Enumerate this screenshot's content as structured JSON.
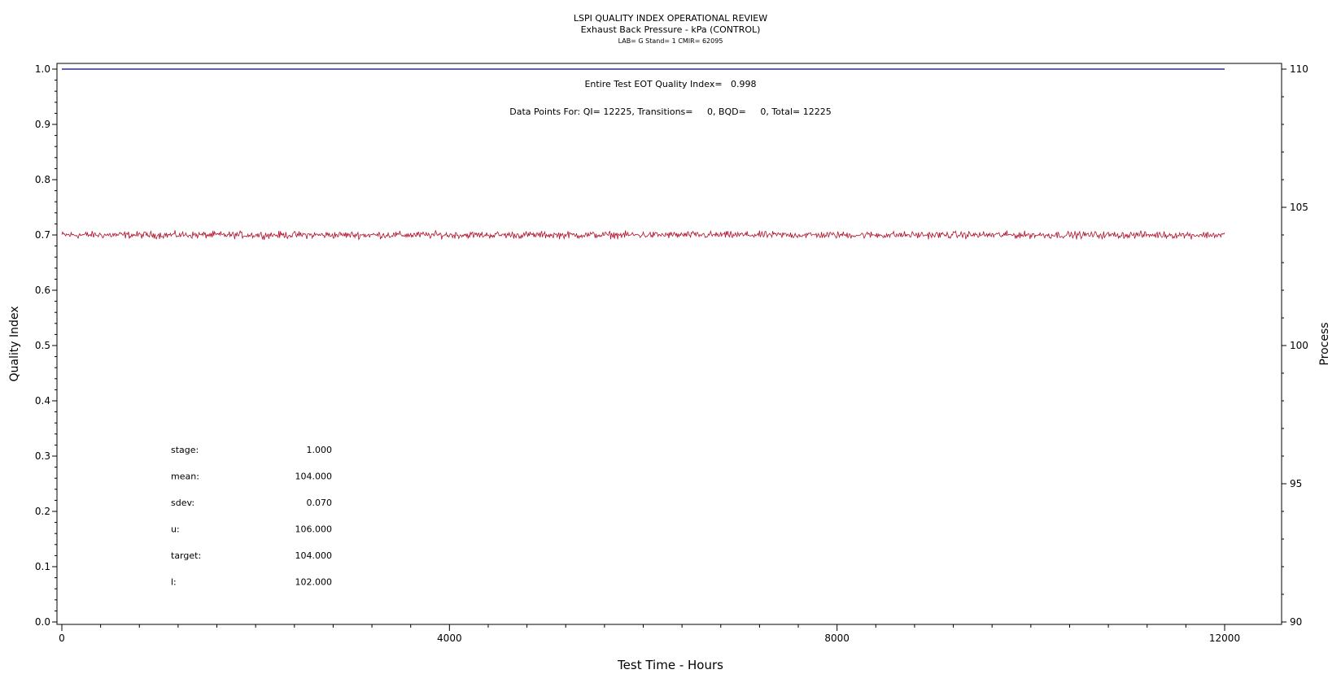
{
  "header": {
    "title": "LSPI QUALITY INDEX OPERATIONAL REVIEW",
    "subtitle": "Exhaust Back Pressure - kPa (CONTROL)",
    "meta": "LAB= G Stand= 1 CMIR= 62095"
  },
  "annotations": {
    "eot": "Entire Test EOT Quality Index=   0.998",
    "points": "Data Points For: QI= 12225, Transitions=     0, BQD=     0, Total= 12225"
  },
  "stats": [
    {
      "label": "stage:",
      "value": "1.000"
    },
    {
      "label": "mean:",
      "value": "104.000"
    },
    {
      "label": "sdev:",
      "value": "0.070"
    },
    {
      "label": "u:",
      "value": "106.000"
    },
    {
      "label": "target:",
      "value": "104.000"
    },
    {
      "label": "l:",
      "value": "102.000"
    }
  ],
  "chart_data": {
    "type": "line",
    "title": "LSPI QUALITY INDEX OPERATIONAL REVIEW",
    "subtitle": "Exhaust Back Pressure - kPa (CONTROL)",
    "xlabel": "Test Time - Hours",
    "ylabel": "Quality Index",
    "y2label": "Process",
    "xlim": [
      0,
      12000
    ],
    "ylim": [
      0.0,
      1.0
    ],
    "y2lim": [
      90,
      110
    ],
    "x_ticks": [
      0,
      4000,
      8000,
      12000
    ],
    "y_ticks": [
      0.0,
      0.1,
      0.2,
      0.3,
      0.4,
      0.5,
      0.6,
      0.7,
      0.8,
      0.9,
      1.0
    ],
    "y2_ticks": [
      90,
      95,
      100,
      105,
      110
    ],
    "grid": false,
    "series": [
      {
        "color": "#b0102a",
        "axis": "right",
        "mean": 104.0,
        "sdev": 0.07,
        "x_range": [
          0,
          12000
        ],
        "points": 12225
      },
      {
        "color": "#000080",
        "axis": "left",
        "values_x": [
          0,
          12000
        ],
        "values_y": [
          1.0,
          1.0
        ]
      }
    ]
  }
}
